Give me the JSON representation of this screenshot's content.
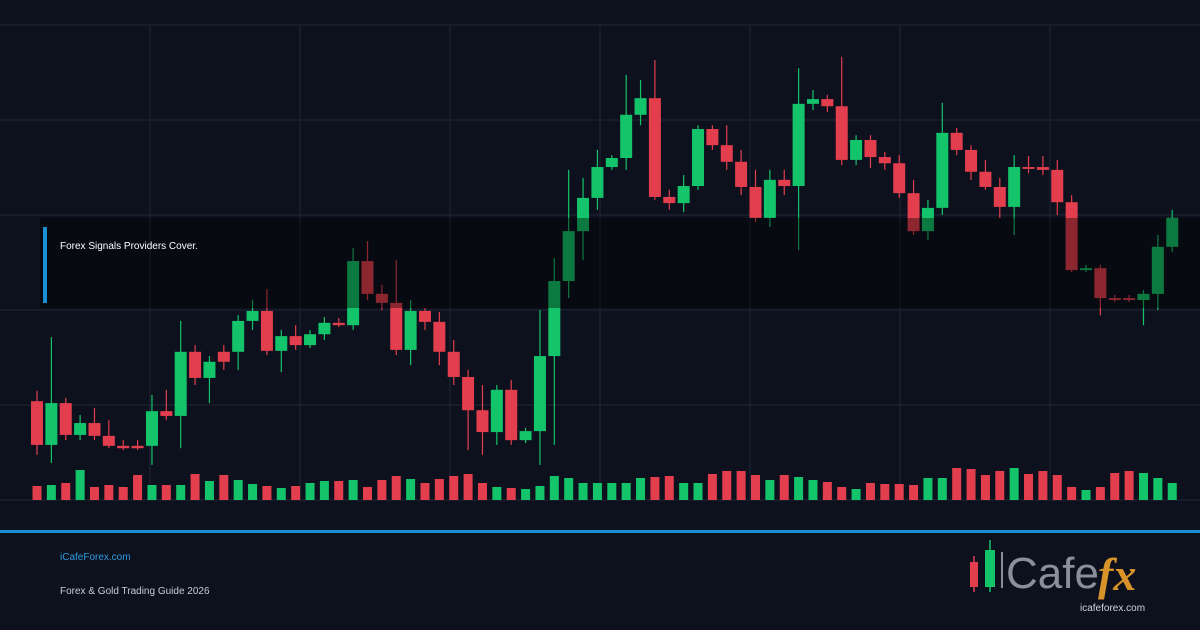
{
  "chart_data": {
    "type": "candlestick",
    "open": [
      20.8,
      11.6,
      20.4,
      13.7,
      16.2,
      13.5,
      11.4,
      11.4,
      11.4,
      18.7,
      17.7,
      31.2,
      25.7,
      31.2,
      31.2,
      37.7,
      39.8,
      31.4,
      34.5,
      32.6,
      34.9,
      37.3,
      36.8,
      50.3,
      43.4,
      41.5,
      31.6,
      39.8,
      37.5,
      31.2,
      25.9,
      18.9,
      14.3,
      23.2,
      12.6,
      14.5,
      30.3,
      46.1,
      56.6,
      63.6,
      70.1,
      72,
      81.1,
      84.6,
      63.8,
      62.5,
      66.1,
      78.1,
      74.7,
      71.2,
      65.9,
      59.4,
      67.4,
      66.1,
      83.4,
      84.4,
      82.9,
      71.6,
      75.8,
      72.2,
      70.9,
      64.6,
      56.6,
      61.5,
      77.3,
      73.7,
      69.1,
      65.9,
      61.7,
      70.1,
      70.1,
      69.5,
      62.7,
      48.4,
      48.8,
      42.5,
      42.5,
      42.1,
      43.4,
      53.3
    ],
    "high": [
      23,
      34.3,
      21.5,
      17.9,
      19.4,
      16.8,
      12.6,
      12.6,
      22.1,
      23.2,
      37.7,
      32.6,
      30.3,
      32.6,
      38.9,
      42.1,
      44.4,
      35.8,
      36.8,
      35.8,
      38.5,
      38.3,
      53,
      54.5,
      45.3,
      50.5,
      42.1,
      40.4,
      39.6,
      33.7,
      27.4,
      24.2,
      24.2,
      25.3,
      15.2,
      40,
      50.9,
      69.5,
      67.8,
      73.7,
      72.6,
      89.5,
      88.4,
      92.6,
      65.3,
      68.4,
      78.9,
      78.9,
      78.9,
      73.7,
      69.5,
      69.5,
      69.5,
      90.9,
      86.3,
      85.3,
      93.3,
      76.8,
      76.8,
      73.3,
      72.6,
      67.4,
      63.2,
      83.6,
      78.3,
      74.7,
      71.6,
      67.8,
      72.6,
      72.4,
      72.4,
      71.6,
      64.2,
      49.5,
      49.5,
      43.2,
      43.2,
      44.2,
      55.8,
      61.1
    ],
    "low": [
      9.5,
      7.8,
      12.6,
      12.6,
      12.6,
      10.9,
      10.5,
      10.5,
      7.4,
      16.8,
      10.9,
      24.2,
      20.4,
      27.4,
      27.4,
      35.8,
      30.5,
      26.9,
      31.6,
      32,
      33.7,
      36.4,
      35.8,
      42.1,
      40,
      30.5,
      28.4,
      35.8,
      28.4,
      24.2,
      10.5,
      9.5,
      11.6,
      11.6,
      12,
      7.4,
      11.6,
      42.5,
      50.5,
      61.1,
      69.5,
      69.5,
      78.9,
      63.2,
      61.1,
      60.6,
      65.3,
      73.7,
      69.5,
      64.2,
      58.5,
      57.5,
      64.2,
      52.6,
      82.1,
      81.7,
      70.5,
      70.5,
      69.9,
      69.5,
      63.6,
      55.8,
      54.7,
      60,
      72.6,
      67.4,
      65.3,
      59.4,
      55.8,
      68.8,
      68.4,
      60,
      48,
      48,
      38.9,
      41.7,
      41.7,
      36.8,
      40,
      52.2
    ],
    "close": [
      11.6,
      20.4,
      13.7,
      16.2,
      13.5,
      11.4,
      10.9,
      10.9,
      18.7,
      17.7,
      31.2,
      25.7,
      29.1,
      29.1,
      37.7,
      39.8,
      31.4,
      34.5,
      32.6,
      34.9,
      37.3,
      36.8,
      50.3,
      43.4,
      41.5,
      31.6,
      39.8,
      37.5,
      31.2,
      25.9,
      18.9,
      14.3,
      23.2,
      12.6,
      14.5,
      30.3,
      46.1,
      56.6,
      63.6,
      70.1,
      72,
      81.1,
      84.6,
      63.8,
      62.5,
      66.1,
      78.1,
      74.7,
      71.2,
      65.9,
      59.4,
      67.4,
      66.1,
      83.4,
      84.4,
      82.9,
      71.6,
      75.8,
      72.2,
      70.9,
      64.6,
      56.6,
      61.5,
      77.3,
      73.7,
      69.1,
      65.9,
      61.7,
      70.1,
      69.7,
      69.5,
      62.7,
      48.4,
      48.8,
      42.5,
      42.1,
      42.1,
      43.4,
      53.3,
      59.4
    ],
    "volume": [
      14,
      15,
      17,
      30,
      13,
      15,
      13,
      25,
      15,
      15,
      15,
      26,
      19,
      25,
      20,
      16,
      14,
      12,
      14,
      17,
      19,
      19,
      20,
      13,
      20,
      24,
      21,
      17,
      21,
      24,
      26,
      17,
      13,
      12,
      11,
      14,
      24,
      22,
      17,
      17,
      17,
      17,
      22,
      23,
      24,
      17,
      17,
      26,
      29,
      29,
      25,
      20,
      25,
      23,
      20,
      18,
      13,
      11,
      17,
      16,
      16,
      15,
      22,
      22,
      32,
      31,
      25,
      29,
      32,
      26,
      29,
      25,
      13,
      10,
      13,
      27,
      29,
      27,
      22,
      17
    ],
    "ylim": [
      0,
      100
    ],
    "yticks": [
      0,
      20,
      40,
      60,
      80,
      100
    ],
    "y2lim": [
      0,
      32
    ],
    "grid": true,
    "up_color": "#14c46a",
    "down_color": "#e33e4d"
  },
  "banner": {
    "title": "Forex Signals Providers Cover."
  },
  "footer": {
    "site": "iCafeForex.com",
    "subtitle": "Forex & Gold Trading Guide 2026"
  },
  "logo": {
    "word": "Cafe",
    "accent": "fx",
    "url": "icafeforex.com"
  }
}
